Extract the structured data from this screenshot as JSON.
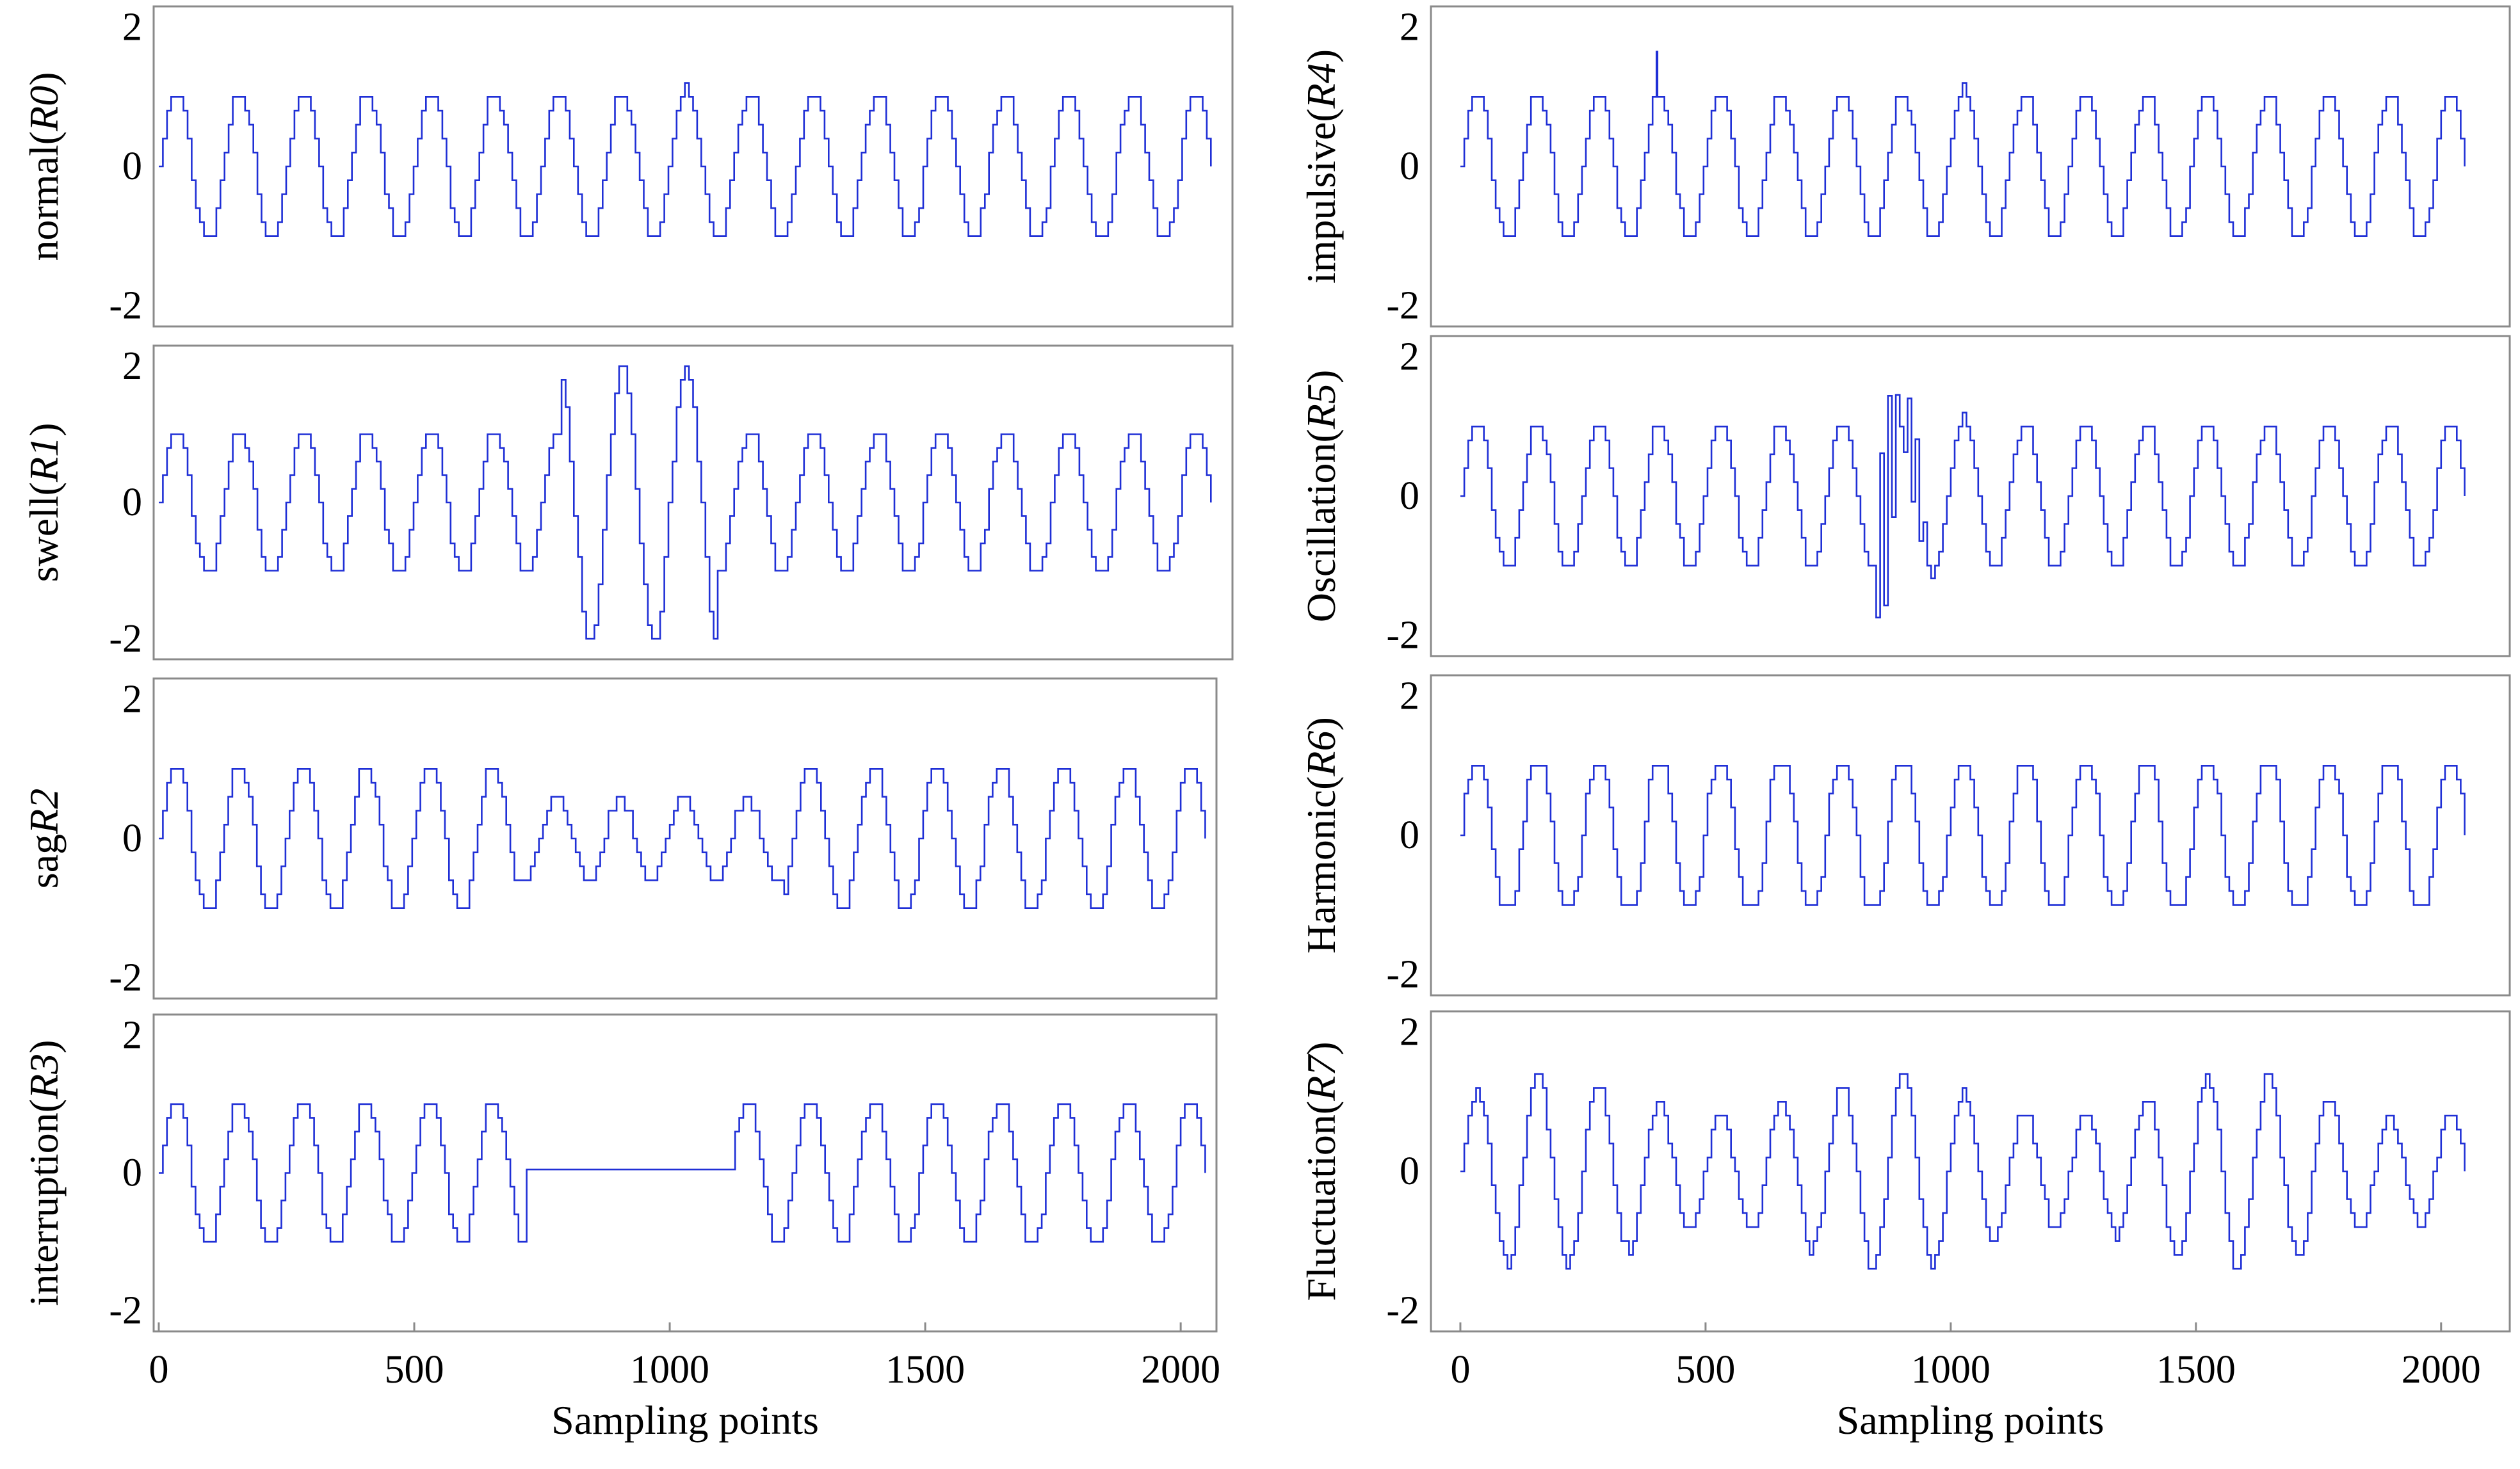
{
  "chart_data": [
    {
      "id": "R0",
      "type": "line",
      "ylabel_plain": "normal(",
      "ylabel_italic": "R0",
      "ylabel_suffix": ")",
      "ylim": [
        -2.3,
        2.3
      ],
      "yticks": [
        "2",
        "0",
        "-2"
      ],
      "ytick_values": [
        2,
        0,
        -2
      ],
      "xlim": [
        -10,
        2090
      ],
      "disturbance": "none",
      "amplitude": 1.1,
      "cycles": 16.5,
      "samples": 2048,
      "xticks": [],
      "xlabel": ""
    },
    {
      "id": "R1",
      "type": "line",
      "ylabel_plain": "swell(",
      "ylabel_italic": "R1",
      "ylabel_suffix": ")",
      "ylim": [
        -2.3,
        2.3
      ],
      "yticks": [
        "2",
        "0",
        "-2"
      ],
      "ytick_values": [
        2,
        0,
        -2
      ],
      "xlim": [
        -10,
        2090
      ],
      "disturbance": "swell",
      "amplitude": 1.1,
      "event_amplitude": 2.0,
      "event_start": 780,
      "event_end": 1080,
      "cycles": 16.5,
      "samples": 2048,
      "xticks": [],
      "xlabel": ""
    },
    {
      "id": "R2",
      "type": "line",
      "ylabel_plain": "sag",
      "ylabel_italic": "R2",
      "ylabel_suffix": "",
      "ylim": [
        -2.3,
        2.3
      ],
      "yticks": [
        "2",
        "0",
        "-2"
      ],
      "ytick_values": [
        2,
        0,
        -2
      ],
      "xlim": [
        -10,
        2070
      ],
      "disturbance": "sag",
      "amplitude": 1.1,
      "event_amplitude": 0.6,
      "event_start": 700,
      "event_end": 1220,
      "cycles": 16.5,
      "samples": 2048,
      "xticks": [],
      "xlabel": ""
    },
    {
      "id": "R3",
      "type": "line",
      "ylabel_plain": "interruption(",
      "ylabel_italic": "R3",
      "ylabel_suffix": ")",
      "ylim": [
        -2.3,
        2.3
      ],
      "yticks": [
        "2",
        "0",
        "-2"
      ],
      "ytick_values": [
        2,
        0,
        -2
      ],
      "xlim": [
        -10,
        2070
      ],
      "disturbance": "interruption",
      "amplitude": 1.1,
      "event_amplitude": 0.05,
      "event_start": 720,
      "event_end": 1120,
      "cycles": 16.5,
      "samples": 2048,
      "xticks": [
        "0",
        "500",
        "1000",
        "1500",
        "2000"
      ],
      "xtick_values": [
        0,
        500,
        1000,
        1500,
        2000
      ],
      "xlabel": "Sampling points"
    },
    {
      "id": "R4",
      "type": "line",
      "ylabel_plain": "impulsive(",
      "ylabel_italic": "R4",
      "ylabel_suffix": ")",
      "ylim": [
        -2.3,
        2.3
      ],
      "yticks": [
        "2",
        "0",
        "-2"
      ],
      "ytick_values": [
        2,
        0,
        -2
      ],
      "xlim": [
        -60,
        2140
      ],
      "disturbance": "impulsive",
      "amplitude": 1.1,
      "event_amplitude": 1.65,
      "event_start": 400,
      "event_end": 400,
      "cycles": 16.5,
      "samples": 2048,
      "xticks": [],
      "xlabel": ""
    },
    {
      "id": "R5",
      "type": "line",
      "ylabel_plain": "Oscillation(",
      "ylabel_italic": "R5",
      "ylabel_suffix": ")",
      "ylim": [
        -2.3,
        2.3
      ],
      "yticks": [
        "2",
        "0",
        "-2"
      ],
      "ytick_values": [
        2,
        0,
        -2
      ],
      "xlim": [
        -60,
        2140
      ],
      "disturbance": "oscillation",
      "amplitude": 1.1,
      "event_amplitude": 1.9,
      "event_start": 840,
      "event_end": 960,
      "cycles": 16.5,
      "samples": 2048,
      "xticks": [],
      "xlabel": ""
    },
    {
      "id": "R6",
      "type": "line",
      "ylabel_plain": "Harmonic(",
      "ylabel_italic": "R6",
      "ylabel_suffix": ")",
      "ylim": [
        -2.3,
        2.3
      ],
      "yticks": [
        "2",
        "0",
        "-2"
      ],
      "ytick_values": [
        2,
        0,
        -2
      ],
      "xlim": [
        -60,
        2140
      ],
      "disturbance": "harmonic",
      "amplitude": 1.1,
      "cycles": 16.5,
      "samples": 2048,
      "xticks": [],
      "xlabel": ""
    },
    {
      "id": "R7",
      "type": "line",
      "ylabel_plain": "Fluctuation(",
      "ylabel_italic": "R7",
      "ylabel_suffix": ")",
      "ylim": [
        -2.3,
        2.3
      ],
      "yticks": [
        "2",
        "0",
        "-2"
      ],
      "ytick_values": [
        2,
        0,
        -2
      ],
      "xlim": [
        -60,
        2140
      ],
      "disturbance": "fluctuation",
      "amplitude": 1.1,
      "event_amplitude": 0.3,
      "cycles": 16.5,
      "samples": 2048,
      "xticks": [
        "0",
        "500",
        "1000",
        "1500",
        "2000"
      ],
      "xtick_values": [
        0,
        500,
        1000,
        1500,
        2000
      ],
      "xlabel": "Sampling points"
    }
  ],
  "colors": {
    "line": "#1f2fd6",
    "frame": "#8a8a8a",
    "text": "#000000"
  }
}
